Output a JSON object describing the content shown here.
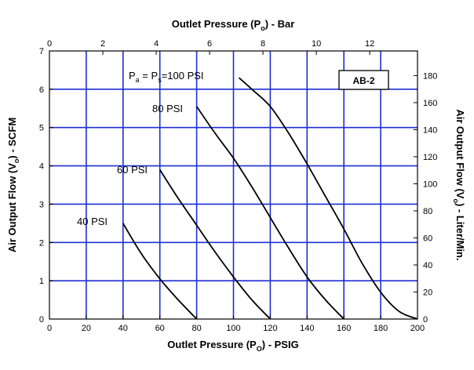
{
  "chart_data": {
    "type": "line",
    "badge": "AB-2",
    "axes": {
      "x_bottom": {
        "label_parts": [
          "Outlet Pressure (P",
          "O",
          ") - PSIG"
        ],
        "ticks": [
          "0",
          "20",
          "40",
          "60",
          "80",
          "100",
          "120",
          "140",
          "160",
          "180",
          "200"
        ],
        "range": [
          0,
          200
        ]
      },
      "x_top": {
        "label_parts": [
          "Outlet Pressure (P",
          "o",
          ") - Bar"
        ],
        "ticks": [
          "0",
          "2",
          "4",
          "6",
          "8",
          "10",
          "12"
        ],
        "range": [
          0,
          13.79
        ]
      },
      "y_left": {
        "label_parts": [
          "Air Output Flow (V",
          "o",
          ") - SCFM"
        ],
        "ticks": [
          "0",
          "1",
          "2",
          "3",
          "4",
          "5",
          "6",
          "7"
        ],
        "range": [
          0,
          7
        ]
      },
      "y_right": {
        "label_parts": [
          "Air Output Flow (V",
          "o",
          ") - Liter/Min."
        ],
        "ticks": [
          "0",
          "20",
          "40",
          "60",
          "80",
          "100",
          "120",
          "140",
          "160",
          "180"
        ],
        "range": [
          0,
          198.2
        ]
      }
    },
    "grid": true,
    "series": [
      {
        "name": "40 PSI",
        "label_parts": [
          "40 PSI"
        ],
        "points": [
          [
            40,
            2.5
          ],
          [
            50,
            1.7
          ],
          [
            60,
            1.05
          ],
          [
            70,
            0.5
          ],
          [
            80,
            0
          ]
        ]
      },
      {
        "name": "60 PSI",
        "label_parts": [
          "60 PSI"
        ],
        "points": [
          [
            60,
            3.9
          ],
          [
            70,
            3.15
          ],
          [
            80,
            2.45
          ],
          [
            90,
            1.75
          ],
          [
            100,
            1.1
          ],
          [
            110,
            0.5
          ],
          [
            120,
            0
          ]
        ]
      },
      {
        "name": "80 PSI",
        "label_parts": [
          "80 PSI"
        ],
        "points": [
          [
            80,
            5.55
          ],
          [
            90,
            4.85
          ],
          [
            100,
            4.2
          ],
          [
            110,
            3.45
          ],
          [
            120,
            2.65
          ],
          [
            130,
            1.85
          ],
          [
            140,
            1.1
          ],
          [
            150,
            0.5
          ],
          [
            160,
            0
          ]
        ]
      },
      {
        "name": "Pa = Ps=100 PSI",
        "label_parts": [
          "P",
          "a",
          " = P",
          "s",
          "=100 PSI"
        ],
        "points": [
          [
            103,
            6.3
          ],
          [
            110,
            6.0
          ],
          [
            120,
            5.55
          ],
          [
            130,
            4.85
          ],
          [
            140,
            4.05
          ],
          [
            150,
            3.2
          ],
          [
            160,
            2.35
          ],
          [
            170,
            1.45
          ],
          [
            180,
            0.7
          ],
          [
            190,
            0.2
          ],
          [
            200,
            0
          ]
        ]
      }
    ]
  }
}
